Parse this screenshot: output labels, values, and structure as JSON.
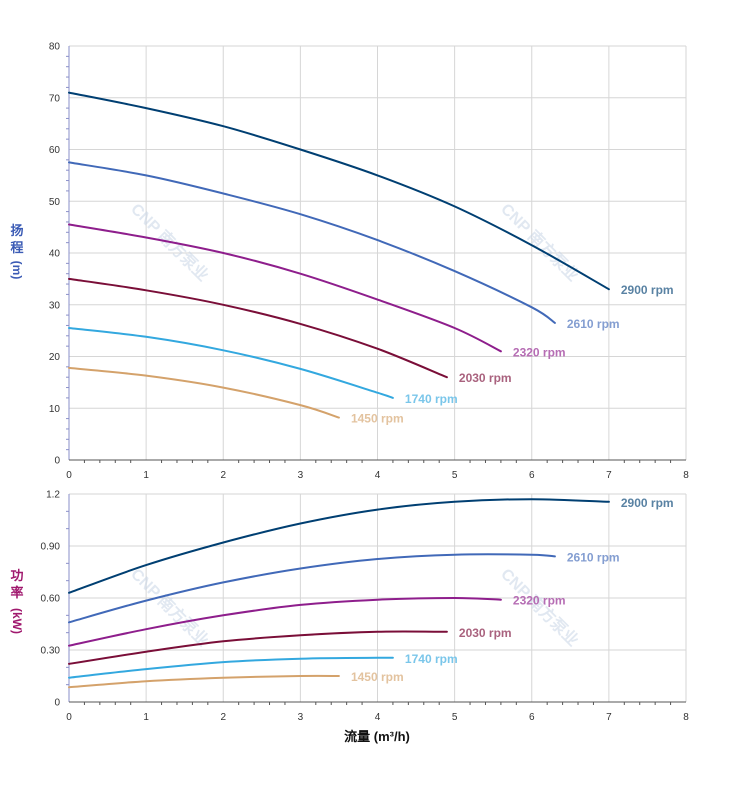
{
  "chart_data": [
    {
      "type": "line",
      "title": "",
      "xlabel": "",
      "ylabel_chars": [
        "扬",
        "程",
        "(m)"
      ],
      "xlim": [
        0,
        8
      ],
      "ylim": [
        0,
        80
      ],
      "x_ticks": [
        "0",
        "1",
        "2",
        "3",
        "4",
        "5",
        "6",
        "7",
        "8"
      ],
      "y_ticks": [
        "0",
        "10",
        "20",
        "30",
        "40",
        "50",
        "60",
        "70",
        "80"
      ],
      "grid": true,
      "series": [
        {
          "name": "2900 rpm",
          "color": "#003f72",
          "x": [
            0,
            1,
            2,
            3,
            4,
            5,
            6,
            7
          ],
          "values": [
            71,
            68,
            64.5,
            60,
            55,
            49,
            41.5,
            33
          ]
        },
        {
          "name": "2610 rpm",
          "color": "#4169b8",
          "x": [
            0,
            1,
            2,
            3,
            4,
            5,
            6,
            6.3
          ],
          "values": [
            57.5,
            55,
            51.5,
            47.5,
            42.5,
            36.5,
            29.5,
            26.5
          ]
        },
        {
          "name": "2320 rpm",
          "color": "#8e1e8c",
          "x": [
            0,
            1,
            2,
            3,
            4,
            5,
            5.6
          ],
          "values": [
            45.5,
            43,
            40,
            36,
            31,
            25.5,
            21
          ]
        },
        {
          "name": "2030 rpm",
          "color": "#7a0e38",
          "x": [
            0,
            1,
            2,
            3,
            4,
            4.9
          ],
          "values": [
            35,
            32.8,
            30,
            26.3,
            21.5,
            16
          ]
        },
        {
          "name": "1740 rpm",
          "color": "#33a8df",
          "x": [
            0,
            1,
            2,
            3,
            4,
            4.2
          ],
          "values": [
            25.5,
            23.8,
            21.2,
            17.6,
            13,
            12
          ]
        },
        {
          "name": "1450 rpm",
          "color": "#d4a26b",
          "x": [
            0,
            1,
            2,
            3,
            3.5
          ],
          "values": [
            17.8,
            16.3,
            14,
            10.6,
            8.2
          ]
        }
      ]
    },
    {
      "type": "line",
      "title": "",
      "xlabel": "流量 (m³/h)",
      "ylabel_chars": [
        "功",
        "率",
        "(kW)"
      ],
      "xlim": [
        0,
        8
      ],
      "ylim": [
        0,
        1.2
      ],
      "x_ticks": [
        "0",
        "1",
        "2",
        "3",
        "4",
        "5",
        "6",
        "7",
        "8"
      ],
      "y_ticks": [
        "0",
        "0.30",
        "0.60",
        "0.90",
        "1.2"
      ],
      "grid": true,
      "series": [
        {
          "name": "2900 rpm",
          "color": "#003f72",
          "x": [
            0,
            1,
            2,
            3,
            4,
            5,
            6,
            7
          ],
          "values": [
            0.63,
            0.79,
            0.92,
            1.03,
            1.11,
            1.155,
            1.17,
            1.155
          ]
        },
        {
          "name": "2610 rpm",
          "color": "#4169b8",
          "x": [
            0,
            1,
            2,
            3,
            4,
            5,
            6,
            6.3
          ],
          "values": [
            0.46,
            0.585,
            0.69,
            0.77,
            0.825,
            0.85,
            0.85,
            0.84
          ]
        },
        {
          "name": "2320 rpm",
          "color": "#8e1e8c",
          "x": [
            0,
            1,
            2,
            3,
            4,
            5,
            5.6
          ],
          "values": [
            0.325,
            0.42,
            0.5,
            0.56,
            0.59,
            0.6,
            0.59
          ]
        },
        {
          "name": "2030 rpm",
          "color": "#7a0e38",
          "x": [
            0,
            1,
            2,
            3,
            4,
            4.9
          ],
          "values": [
            0.22,
            0.29,
            0.35,
            0.385,
            0.405,
            0.405
          ]
        },
        {
          "name": "1740 rpm",
          "color": "#33a8df",
          "x": [
            0,
            1,
            2,
            3,
            4,
            4.2
          ],
          "values": [
            0.14,
            0.19,
            0.23,
            0.25,
            0.255,
            0.255
          ]
        },
        {
          "name": "1450 rpm",
          "color": "#d4a26b",
          "x": [
            0,
            1,
            2,
            3,
            3.5
          ],
          "values": [
            0.085,
            0.12,
            0.14,
            0.15,
            0.15
          ]
        }
      ]
    }
  ],
  "watermark": "CNP 南方泵业"
}
